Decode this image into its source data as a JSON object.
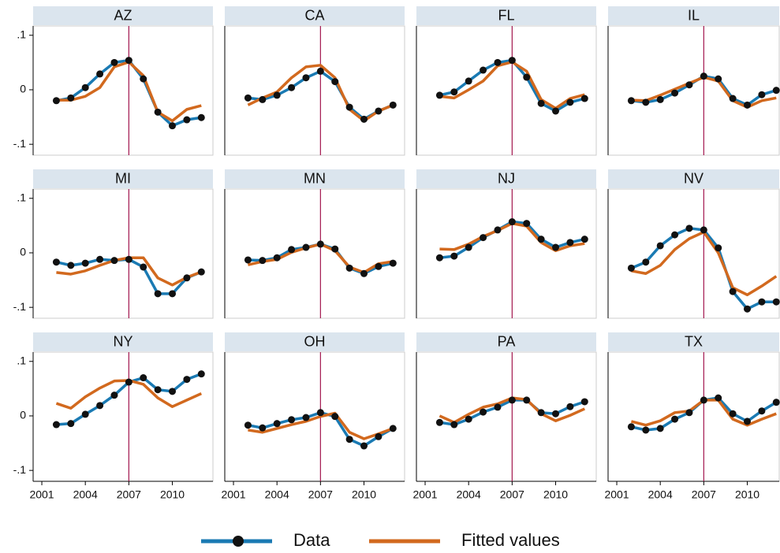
{
  "chart_data": {
    "type": "line",
    "x": [
      2002,
      2003,
      2004,
      2005,
      2006,
      2007,
      2008,
      2009,
      2010,
      2011,
      2012
    ],
    "xlim": [
      2000.4,
      2012.8
    ],
    "xticks": [
      2001,
      2004,
      2007,
      2010
    ],
    "ylim": [
      -0.12,
      0.117
    ],
    "yticks": [
      {
        "value": 0.1,
        "label": ".1"
      },
      0,
      {
        "value": -0.1,
        "label": "-.1"
      }
    ],
    "vline": 2007,
    "vline_color": "#a3174f",
    "series": [
      {
        "name": "Data",
        "color": "#1a7ab3",
        "marker": true
      },
      {
        "name": "Fitted values",
        "color": "#d2691e",
        "marker": false
      }
    ],
    "panels": [
      {
        "title": "AZ",
        "series": [
          {
            "values": [
              -0.02,
              -0.015,
              0.004,
              0.029,
              0.05,
              0.054,
              0.02,
              -0.041,
              -0.066,
              -0.055,
              -0.051
            ]
          },
          {
            "values": [
              -0.019,
              -0.019,
              -0.012,
              0.004,
              0.042,
              0.051,
              0.026,
              -0.041,
              -0.057,
              -0.036,
              -0.029
            ]
          }
        ]
      },
      {
        "title": "CA",
        "series": [
          {
            "values": [
              -0.015,
              -0.018,
              -0.01,
              0.004,
              0.022,
              0.034,
              0.015,
              -0.032,
              -0.054,
              -0.039,
              -0.028
            ]
          },
          {
            "values": [
              -0.028,
              -0.015,
              -0.004,
              0.022,
              0.042,
              0.045,
              0.022,
              -0.036,
              -0.057,
              -0.039,
              -0.028
            ]
          }
        ]
      },
      {
        "title": "FL",
        "series": [
          {
            "values": [
              -0.01,
              -0.004,
              0.016,
              0.036,
              0.05,
              0.054,
              0.023,
              -0.025,
              -0.039,
              -0.023,
              -0.016
            ]
          },
          {
            "values": [
              -0.012,
              -0.015,
              0.0,
              0.016,
              0.044,
              0.051,
              0.034,
              -0.018,
              -0.034,
              -0.016,
              -0.009
            ]
          }
        ]
      },
      {
        "title": "IL",
        "series": [
          {
            "values": [
              -0.02,
              -0.023,
              -0.018,
              -0.006,
              0.009,
              0.025,
              0.02,
              -0.016,
              -0.028,
              -0.009,
              -0.001
            ]
          },
          {
            "values": [
              -0.019,
              -0.02,
              -0.01,
              0.001,
              0.012,
              0.023,
              0.016,
              -0.02,
              -0.032,
              -0.02,
              -0.015
            ]
          }
        ]
      },
      {
        "title": "MI",
        "series": [
          {
            "values": [
              -0.017,
              -0.023,
              -0.019,
              -0.012,
              -0.014,
              -0.012,
              -0.026,
              -0.075,
              -0.075,
              -0.046,
              -0.035
            ]
          },
          {
            "values": [
              -0.036,
              -0.039,
              -0.033,
              -0.023,
              -0.014,
              -0.009,
              -0.009,
              -0.046,
              -0.059,
              -0.045,
              -0.035
            ]
          }
        ]
      },
      {
        "title": "MN",
        "series": [
          {
            "values": [
              -0.013,
              -0.014,
              -0.009,
              0.006,
              0.01,
              0.016,
              0.007,
              -0.028,
              -0.038,
              -0.025,
              -0.019
            ]
          },
          {
            "values": [
              -0.022,
              -0.016,
              -0.012,
              0.001,
              0.009,
              0.016,
              0.004,
              -0.026,
              -0.036,
              -0.02,
              -0.016
            ]
          }
        ]
      },
      {
        "title": "NJ",
        "series": [
          {
            "values": [
              -0.009,
              -0.006,
              0.01,
              0.028,
              0.042,
              0.057,
              0.054,
              0.025,
              0.01,
              0.019,
              0.025
            ]
          },
          {
            "values": [
              0.007,
              0.006,
              0.016,
              0.03,
              0.041,
              0.054,
              0.049,
              0.019,
              0.004,
              0.013,
              0.017
            ]
          }
        ]
      },
      {
        "title": "NV",
        "series": [
          {
            "values": [
              -0.028,
              -0.017,
              0.013,
              0.033,
              0.045,
              0.042,
              0.009,
              -0.071,
              -0.103,
              -0.09,
              -0.09
            ]
          },
          {
            "values": [
              -0.033,
              -0.038,
              -0.023,
              0.006,
              0.026,
              0.038,
              0.0,
              -0.064,
              -0.077,
              -0.061,
              -0.043
            ]
          }
        ]
      },
      {
        "title": "NY",
        "series": [
          {
            "values": [
              -0.016,
              -0.014,
              0.003,
              0.019,
              0.038,
              0.062,
              0.07,
              0.048,
              0.045,
              0.067,
              0.077
            ]
          },
          {
            "values": [
              0.023,
              0.014,
              0.035,
              0.051,
              0.064,
              0.065,
              0.058,
              0.033,
              0.017,
              0.029,
              0.041
            ]
          }
        ]
      },
      {
        "title": "OH",
        "series": [
          {
            "values": [
              -0.017,
              -0.022,
              -0.014,
              -0.007,
              -0.003,
              0.006,
              -0.001,
              -0.043,
              -0.055,
              -0.038,
              -0.023
            ]
          },
          {
            "values": [
              -0.026,
              -0.03,
              -0.023,
              -0.016,
              -0.01,
              -0.001,
              0.005,
              -0.03,
              -0.042,
              -0.033,
              -0.023
            ]
          }
        ]
      },
      {
        "title": "PA",
        "series": [
          {
            "values": [
              -0.012,
              -0.016,
              -0.006,
              0.007,
              0.016,
              0.029,
              0.029,
              0.006,
              0.004,
              0.017,
              0.026
            ]
          },
          {
            "values": [
              0.0,
              -0.012,
              0.003,
              0.016,
              0.022,
              0.033,
              0.03,
              0.004,
              -0.009,
              0.001,
              0.013
            ]
          }
        ]
      },
      {
        "title": "TX",
        "series": [
          {
            "values": [
              -0.02,
              -0.026,
              -0.023,
              -0.006,
              0.006,
              0.029,
              0.033,
              0.004,
              -0.01,
              0.009,
              0.025
            ]
          },
          {
            "values": [
              -0.01,
              -0.017,
              -0.009,
              0.006,
              0.009,
              0.029,
              0.029,
              -0.006,
              -0.017,
              -0.006,
              0.004
            ]
          }
        ]
      }
    ]
  }
}
